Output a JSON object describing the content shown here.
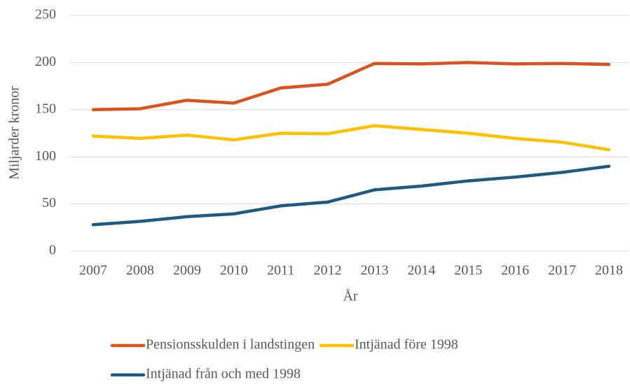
{
  "chart_data": {
    "type": "line",
    "x_label": "År",
    "y_label": "Miljarder kronor",
    "categories": [
      "2007",
      "2008",
      "2009",
      "2010",
      "2011",
      "2012",
      "2013",
      "2014",
      "2015",
      "2016",
      "2017",
      "2018"
    ],
    "series": [
      {
        "name": "Pensionsskulden i landstingen",
        "color": "#d9531e",
        "values": [
          150,
          151,
          160,
          157,
          173,
          177,
          199,
          198.5,
          200,
          198.5,
          199,
          198
        ]
      },
      {
        "name": "Intjänad före 1998",
        "color": "#ffc000",
        "values": [
          122,
          119.5,
          123,
          118,
          125,
          124.5,
          133,
          129,
          125,
          119.5,
          115.5,
          107.5
        ]
      },
      {
        "name": "Intjänad från och med 1998",
        "color": "#1f5a82",
        "values": [
          28,
          31.5,
          36.5,
          39.5,
          48,
          52,
          65,
          69,
          74.5,
          78.5,
          83.5,
          90
        ]
      }
    ],
    "ylim": [
      0,
      250
    ],
    "yticks": [
      0,
      50,
      100,
      150,
      200,
      250
    ],
    "grid": true
  }
}
